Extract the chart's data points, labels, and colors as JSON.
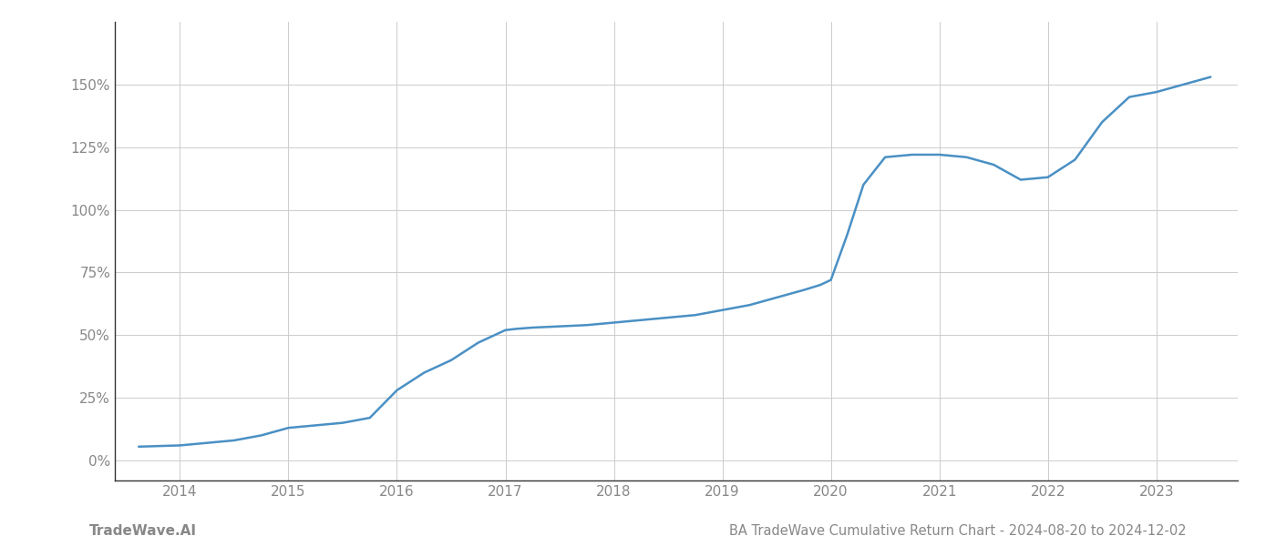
{
  "title": "BA TradeWave Cumulative Return Chart - 2024-08-20 to 2024-12-02",
  "watermark": "TradeWave.AI",
  "x_years": [
    2014,
    2015,
    2016,
    2017,
    2018,
    2019,
    2020,
    2021,
    2022,
    2023
  ],
  "x_data": [
    2013.62,
    2014.0,
    2014.25,
    2014.5,
    2014.75,
    2015.0,
    2015.25,
    2015.5,
    2015.75,
    2016.0,
    2016.25,
    2016.5,
    2016.75,
    2017.0,
    2017.1,
    2017.25,
    2017.5,
    2017.75,
    2018.0,
    2018.25,
    2018.5,
    2018.75,
    2019.0,
    2019.25,
    2019.5,
    2019.75,
    2019.9,
    2020.0,
    2020.15,
    2020.3,
    2020.5,
    2020.75,
    2021.0,
    2021.25,
    2021.5,
    2021.75,
    2022.0,
    2022.25,
    2022.5,
    2022.75,
    2023.0,
    2023.25,
    2023.5
  ],
  "y_data": [
    5.5,
    6,
    7,
    8,
    10,
    13,
    14,
    15,
    17,
    28,
    35,
    40,
    47,
    52,
    52.5,
    53,
    53.5,
    54,
    55,
    56,
    57,
    58,
    60,
    62,
    65,
    68,
    70,
    72,
    90,
    110,
    121,
    122,
    122,
    121,
    118,
    112,
    113,
    120,
    135,
    145,
    147,
    150,
    153
  ],
  "line_color": "#4a90c4",
  "line_width": 1.8,
  "background_color": "#ffffff",
  "grid_color": "#cccccc",
  "yticks": [
    0,
    25,
    50,
    75,
    100,
    125,
    150
  ],
  "ylim": [
    -8,
    175
  ],
  "xlim": [
    2013.4,
    2023.75
  ],
  "title_fontsize": 10.5,
  "watermark_fontsize": 11,
  "axis_label_color": "#888888",
  "title_color": "#888888",
  "left_spine_color": "#333333",
  "bottom_spine_color": "#333333"
}
